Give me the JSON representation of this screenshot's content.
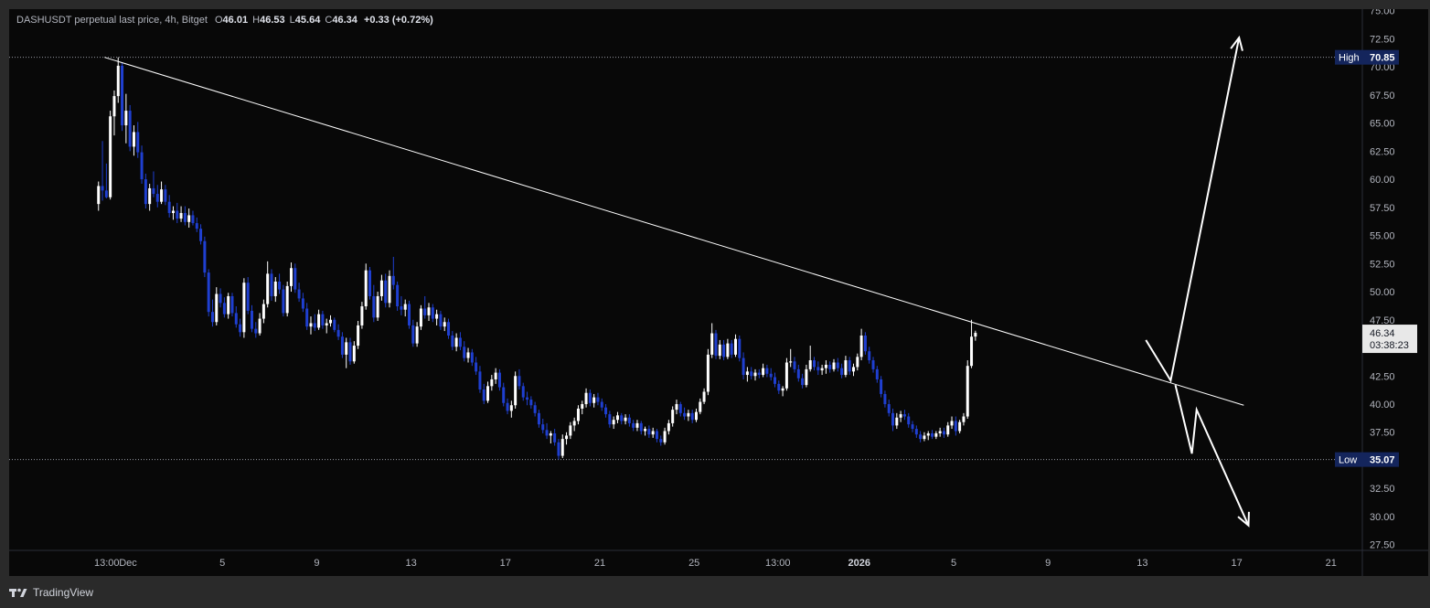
{
  "legend": {
    "symbol": "DASHUSDT perpetual last price, 4h, Bitget",
    "o_label": "O",
    "o_value": "46.01",
    "h_label": "H",
    "h_value": "46.53",
    "l_label": "L",
    "l_value": "45.64",
    "c_label": "C",
    "c_value": "46.34",
    "change": "+0.33 (+0.72%)"
  },
  "branding": {
    "name": "TradingView"
  },
  "colors": {
    "background": "#080808",
    "up_candle": "#ffffff",
    "down_candle": "#1f3fd0",
    "badge": "#14255c",
    "trendline": "#ffffff"
  },
  "chart_data": {
    "type": "candlestick",
    "symbol": "DASHUSDT",
    "interval": "4h",
    "ylim": [
      26.5,
      75.5
    ],
    "y_ticks": [
      "75.00",
      "72.50",
      "70.00",
      "67.50",
      "65.00",
      "62.50",
      "60.00",
      "57.50",
      "55.00",
      "52.50",
      "50.00",
      "47.50",
      "45.00",
      "42.50",
      "40.00",
      "37.50",
      "35.00",
      "32.50",
      "30.00",
      "27.50"
    ],
    "x_ticks": [
      {
        "label": "13:00",
        "day": -0.9,
        "bold": false
      },
      {
        "label": "Dec",
        "day": 0,
        "bold": false
      },
      {
        "label": "5",
        "day": 4,
        "bold": false
      },
      {
        "label": "9",
        "day": 8,
        "bold": false
      },
      {
        "label": "13",
        "day": 12,
        "bold": false
      },
      {
        "label": "17",
        "day": 16,
        "bold": false
      },
      {
        "label": "21",
        "day": 20,
        "bold": false
      },
      {
        "label": "25",
        "day": 24,
        "bold": false
      },
      {
        "label": "13:00",
        "day": 27.55,
        "bold": false
      },
      {
        "label": "2026",
        "day": 31,
        "bold": true
      },
      {
        "label": "5",
        "day": 35,
        "bold": false
      },
      {
        "label": "9",
        "day": 39,
        "bold": false
      },
      {
        "label": "13",
        "day": 43,
        "bold": false
      },
      {
        "label": "17",
        "day": 47,
        "bold": false
      },
      {
        "label": "21",
        "day": 51,
        "bold": false
      }
    ],
    "candles_4h": [
      [
        57.8,
        59.8,
        57.2,
        59.4
      ],
      [
        59.4,
        63.4,
        58.1,
        59.0
      ],
      [
        59.0,
        61.4,
        58.3,
        58.4
      ],
      [
        58.4,
        66.1,
        58.2,
        65.6
      ],
      [
        65.6,
        67.9,
        63.9,
        67.4
      ],
      [
        67.4,
        70.85,
        66.8,
        70.1
      ],
      [
        70.1,
        70.4,
        64.3,
        64.8
      ],
      [
        64.8,
        67.6,
        63.2,
        66.1
      ],
      [
        66.1,
        66.6,
        62.5,
        62.9
      ],
      [
        62.9,
        64.8,
        62.1,
        64.2
      ],
      [
        64.2,
        65.1,
        61.9,
        62.4
      ],
      [
        62.4,
        63.0,
        59.6,
        60.0
      ],
      [
        60.0,
        60.5,
        57.4,
        57.8
      ],
      [
        57.8,
        59.6,
        57.2,
        59.2
      ],
      [
        59.2,
        60.7,
        58.4,
        58.7
      ],
      [
        58.7,
        59.5,
        57.5,
        58.0
      ],
      [
        58.0,
        59.8,
        57.8,
        59.1
      ],
      [
        59.1,
        59.5,
        57.7,
        58.0
      ],
      [
        58.0,
        58.6,
        56.6,
        57.0
      ],
      [
        57.0,
        57.6,
        56.4,
        57.2
      ],
      [
        57.2,
        57.9,
        56.1,
        56.5
      ],
      [
        56.5,
        57.6,
        56.2,
        57.0
      ],
      [
        57.0,
        57.6,
        55.9,
        56.2
      ],
      [
        56.2,
        57.4,
        55.7,
        56.8
      ],
      [
        56.8,
        57.2,
        55.9,
        56.1
      ],
      [
        56.1,
        56.6,
        55.3,
        55.6
      ],
      [
        55.6,
        56.0,
        54.2,
        54.5
      ],
      [
        54.5,
        54.9,
        51.3,
        51.7
      ],
      [
        51.7,
        52.0,
        47.8,
        48.2
      ],
      [
        48.2,
        49.3,
        46.9,
        47.3
      ],
      [
        47.3,
        50.4,
        47.0,
        49.8
      ],
      [
        49.8,
        50.3,
        48.6,
        49.0
      ],
      [
        49.0,
        49.5,
        47.7,
        48.0
      ],
      [
        48.0,
        49.9,
        47.6,
        49.6
      ],
      [
        49.6,
        49.9,
        47.8,
        48.1
      ],
      [
        48.1,
        48.7,
        46.8,
        47.1
      ],
      [
        47.1,
        47.6,
        46.0,
        46.4
      ],
      [
        46.4,
        51.2,
        45.9,
        50.8
      ],
      [
        50.8,
        51.3,
        48.0,
        48.3
      ],
      [
        48.3,
        48.8,
        46.4,
        46.7
      ],
      [
        46.7,
        47.3,
        45.9,
        46.3
      ],
      [
        46.3,
        48.1,
        46.1,
        47.6
      ],
      [
        47.6,
        49.3,
        47.2,
        48.9
      ],
      [
        48.9,
        52.7,
        48.6,
        51.6
      ],
      [
        51.6,
        52.0,
        49.2,
        49.6
      ],
      [
        49.6,
        51.3,
        49.1,
        50.9
      ],
      [
        50.9,
        51.6,
        49.8,
        50.2
      ],
      [
        50.2,
        50.6,
        47.8,
        48.1
      ],
      [
        48.1,
        50.9,
        47.8,
        50.5
      ],
      [
        50.5,
        52.6,
        50.0,
        52.1
      ],
      [
        52.1,
        52.5,
        49.9,
        50.2
      ],
      [
        50.2,
        50.8,
        49.1,
        49.4
      ],
      [
        49.4,
        49.9,
        48.2,
        48.5
      ],
      [
        48.5,
        49.0,
        46.6,
        46.9
      ],
      [
        46.9,
        47.8,
        46.2,
        47.2
      ],
      [
        47.2,
        48.0,
        46.5,
        46.8
      ],
      [
        46.8,
        48.4,
        46.6,
        48.0
      ],
      [
        48.0,
        48.3,
        46.7,
        47.0
      ],
      [
        47.0,
        47.6,
        46.3,
        47.2
      ],
      [
        47.2,
        47.9,
        46.9,
        47.5
      ],
      [
        47.5,
        47.7,
        46.4,
        46.6
      ],
      [
        46.6,
        47.1,
        45.7,
        46.0
      ],
      [
        46.0,
        46.4,
        44.1,
        44.4
      ],
      [
        44.4,
        45.9,
        43.2,
        45.5
      ],
      [
        45.5,
        45.9,
        43.5,
        43.8
      ],
      [
        43.8,
        45.6,
        43.6,
        45.2
      ],
      [
        45.2,
        47.4,
        44.9,
        47.0
      ],
      [
        47.0,
        49.1,
        46.7,
        48.7
      ],
      [
        48.7,
        52.5,
        48.4,
        51.9
      ],
      [
        51.9,
        52.2,
        49.3,
        49.6
      ],
      [
        49.6,
        50.6,
        47.3,
        47.7
      ],
      [
        47.7,
        50.0,
        47.4,
        49.6
      ],
      [
        49.6,
        51.5,
        49.2,
        51.0
      ],
      [
        51.0,
        51.6,
        48.6,
        49.0
      ],
      [
        49.0,
        51.9,
        48.6,
        51.4
      ],
      [
        51.4,
        53.1,
        50.2,
        50.6
      ],
      [
        50.6,
        50.9,
        48.3,
        48.7
      ],
      [
        48.7,
        49.6,
        47.9,
        48.4
      ],
      [
        48.4,
        49.3,
        47.8,
        48.9
      ],
      [
        48.9,
        49.2,
        46.7,
        47.0
      ],
      [
        47.0,
        47.5,
        45.1,
        45.4
      ],
      [
        45.4,
        47.3,
        45.1,
        46.9
      ],
      [
        46.9,
        48.8,
        46.6,
        48.5
      ],
      [
        48.5,
        49.6,
        47.6,
        47.9
      ],
      [
        47.9,
        49.0,
        47.4,
        48.6
      ],
      [
        48.6,
        48.9,
        47.3,
        47.6
      ],
      [
        47.6,
        48.4,
        47.0,
        48.0
      ],
      [
        48.0,
        48.3,
        46.6,
        46.9
      ],
      [
        46.9,
        47.7,
        46.5,
        47.3
      ],
      [
        47.3,
        47.6,
        45.8,
        46.1
      ],
      [
        46.1,
        46.5,
        44.8,
        45.1
      ],
      [
        45.1,
        46.3,
        44.7,
        45.9
      ],
      [
        45.9,
        46.4,
        44.8,
        45.1
      ],
      [
        45.1,
        45.6,
        43.8,
        44.1
      ],
      [
        44.1,
        45.0,
        43.7,
        44.6
      ],
      [
        44.6,
        44.9,
        43.4,
        43.7
      ],
      [
        43.7,
        44.2,
        42.6,
        42.9
      ],
      [
        42.9,
        43.4,
        41.0,
        41.3
      ],
      [
        41.3,
        41.8,
        40.0,
        40.3
      ],
      [
        40.3,
        42.0,
        40.1,
        41.6
      ],
      [
        41.6,
        42.6,
        41.2,
        42.2
      ],
      [
        42.2,
        43.2,
        41.8,
        42.8
      ],
      [
        42.8,
        43.1,
        41.2,
        41.5
      ],
      [
        41.5,
        41.9,
        39.8,
        40.1
      ],
      [
        40.1,
        40.5,
        39.1,
        39.4
      ],
      [
        39.4,
        40.3,
        38.8,
        39.9
      ],
      [
        39.9,
        42.9,
        39.6,
        42.5
      ],
      [
        42.5,
        43.1,
        41.3,
        41.6
      ],
      [
        41.6,
        41.9,
        40.3,
        40.6
      ],
      [
        40.6,
        41.1,
        39.9,
        40.4
      ],
      [
        40.4,
        40.7,
        39.6,
        39.9
      ],
      [
        39.9,
        40.2,
        38.9,
        39.2
      ],
      [
        39.2,
        39.5,
        37.9,
        38.2
      ],
      [
        38.2,
        38.7,
        37.4,
        37.7
      ],
      [
        37.7,
        38.3,
        36.9,
        37.2
      ],
      [
        37.2,
        37.6,
        36.5,
        37.4
      ],
      [
        37.4,
        37.8,
        36.3,
        36.6
      ],
      [
        36.6,
        36.9,
        35.07,
        35.4
      ],
      [
        35.4,
        37.3,
        35.2,
        36.9
      ],
      [
        36.9,
        37.5,
        36.4,
        37.2
      ],
      [
        37.2,
        38.4,
        36.9,
        38.1
      ],
      [
        38.1,
        38.8,
        37.6,
        38.5
      ],
      [
        38.5,
        39.9,
        38.2,
        39.6
      ],
      [
        39.6,
        40.3,
        39.1,
        40.0
      ],
      [
        40.0,
        41.4,
        39.7,
        41.0
      ],
      [
        41.0,
        41.3,
        39.8,
        40.1
      ],
      [
        40.1,
        40.9,
        39.7,
        40.6
      ],
      [
        40.6,
        41.0,
        39.9,
        40.2
      ],
      [
        40.2,
        40.5,
        39.4,
        39.7
      ],
      [
        39.7,
        40.0,
        38.8,
        39.1
      ],
      [
        39.1,
        39.4,
        37.9,
        38.2
      ],
      [
        38.2,
        38.9,
        37.8,
        38.6
      ],
      [
        38.6,
        39.3,
        38.3,
        39.0
      ],
      [
        39.0,
        39.2,
        38.2,
        38.5
      ],
      [
        38.5,
        39.1,
        38.2,
        38.8
      ],
      [
        38.8,
        39.1,
        38.0,
        38.3
      ],
      [
        38.3,
        38.6,
        37.6,
        37.9
      ],
      [
        37.9,
        38.6,
        37.6,
        38.3
      ],
      [
        38.3,
        38.5,
        37.3,
        37.6
      ],
      [
        37.6,
        38.0,
        37.2,
        37.8
      ],
      [
        37.8,
        38.1,
        37.0,
        37.3
      ],
      [
        37.3,
        37.9,
        37.0,
        37.6
      ],
      [
        37.6,
        37.8,
        36.6,
        36.9
      ],
      [
        36.9,
        37.2,
        36.3,
        36.6
      ],
      [
        36.6,
        37.9,
        36.4,
        37.6
      ],
      [
        37.6,
        38.6,
        37.3,
        38.3
      ],
      [
        38.3,
        39.8,
        38.0,
        39.5
      ],
      [
        39.5,
        40.4,
        39.1,
        40.0
      ],
      [
        40.0,
        40.2,
        38.9,
        39.2
      ],
      [
        39.2,
        39.7,
        38.6,
        38.9
      ],
      [
        38.9,
        39.5,
        38.5,
        39.2
      ],
      [
        39.2,
        39.5,
        38.3,
        38.6
      ],
      [
        38.6,
        39.6,
        38.4,
        39.3
      ],
      [
        39.3,
        40.5,
        39.1,
        40.2
      ],
      [
        40.2,
        41.4,
        40.0,
        41.1
      ],
      [
        41.1,
        44.9,
        40.8,
        44.4
      ],
      [
        44.4,
        47.2,
        44.1,
        46.3
      ],
      [
        46.3,
        46.6,
        44.0,
        44.3
      ],
      [
        44.3,
        45.7,
        44.0,
        45.3
      ],
      [
        45.3,
        45.7,
        43.9,
        44.2
      ],
      [
        44.2,
        45.8,
        44.0,
        45.4
      ],
      [
        45.4,
        45.7,
        44.1,
        44.4
      ],
      [
        44.4,
        46.2,
        44.2,
        45.8
      ],
      [
        45.8,
        46.1,
        43.8,
        44.1
      ],
      [
        44.1,
        44.6,
        42.2,
        42.6
      ],
      [
        42.6,
        43.3,
        42.0,
        42.9
      ],
      [
        42.9,
        43.3,
        42.2,
        42.5
      ],
      [
        42.5,
        43.1,
        42.1,
        42.8
      ],
      [
        42.8,
        43.1,
        42.3,
        42.6
      ],
      [
        42.6,
        43.6,
        42.4,
        43.2
      ],
      [
        43.2,
        43.5,
        42.4,
        42.7
      ],
      [
        42.7,
        43.2,
        42.1,
        42.4
      ],
      [
        42.4,
        42.8,
        41.5,
        41.8
      ],
      [
        41.8,
        42.1,
        40.9,
        41.2
      ],
      [
        41.2,
        41.6,
        40.7,
        41.4
      ],
      [
        41.4,
        44.1,
        41.2,
        43.7
      ],
      [
        43.7,
        44.9,
        43.3,
        43.8
      ],
      [
        43.8,
        44.2,
        42.8,
        43.1
      ],
      [
        43.1,
        43.5,
        42.0,
        42.3
      ],
      [
        42.3,
        42.7,
        41.4,
        41.7
      ],
      [
        41.7,
        43.5,
        41.5,
        43.1
      ],
      [
        43.1,
        45.2,
        42.9,
        43.9
      ],
      [
        43.9,
        44.2,
        43.0,
        43.3
      ],
      [
        43.3,
        43.8,
        42.6,
        43.0
      ],
      [
        43.0,
        43.5,
        42.6,
        43.2
      ],
      [
        43.2,
        43.9,
        42.7,
        43.5
      ],
      [
        43.5,
        43.8,
        42.8,
        43.1
      ],
      [
        43.1,
        44.0,
        42.9,
        43.7
      ],
      [
        43.7,
        44.1,
        42.9,
        43.2
      ],
      [
        43.2,
        43.6,
        42.3,
        42.6
      ],
      [
        42.6,
        44.3,
        42.4,
        43.9
      ],
      [
        43.9,
        44.2,
        42.6,
        42.9
      ],
      [
        42.9,
        43.6,
        42.5,
        43.3
      ],
      [
        43.3,
        44.5,
        43.0,
        44.2
      ],
      [
        44.2,
        46.7,
        43.9,
        46.1
      ],
      [
        46.1,
        46.4,
        44.4,
        44.7
      ],
      [
        44.7,
        45.1,
        43.6,
        43.9
      ],
      [
        43.9,
        44.2,
        42.8,
        43.1
      ],
      [
        43.1,
        43.4,
        41.9,
        42.2
      ],
      [
        42.2,
        42.5,
        40.6,
        40.9
      ],
      [
        40.9,
        41.2,
        39.7,
        40.0
      ],
      [
        40.0,
        40.4,
        38.9,
        39.2
      ],
      [
        39.2,
        39.6,
        37.6,
        38.1
      ],
      [
        38.1,
        39.2,
        37.8,
        38.8
      ],
      [
        38.8,
        39.4,
        38.4,
        39.1
      ],
      [
        39.1,
        39.5,
        38.6,
        38.9
      ],
      [
        38.9,
        39.2,
        37.9,
        38.2
      ],
      [
        38.2,
        38.5,
        37.5,
        37.8
      ],
      [
        37.8,
        38.1,
        37.0,
        37.3
      ],
      [
        37.3,
        37.6,
        36.6,
        36.9
      ],
      [
        36.9,
        37.5,
        36.7,
        37.2
      ],
      [
        37.2,
        37.6,
        36.8,
        37.4
      ],
      [
        37.4,
        37.7,
        36.9,
        37.1
      ],
      [
        37.1,
        37.6,
        36.9,
        37.4
      ],
      [
        37.4,
        37.9,
        37.1,
        37.6
      ],
      [
        37.6,
        37.9,
        37.0,
        37.3
      ],
      [
        37.3,
        38.4,
        37.1,
        38.1
      ],
      [
        38.1,
        38.9,
        37.8,
        38.5
      ],
      [
        38.5,
        38.9,
        37.2,
        37.6
      ],
      [
        37.6,
        38.6,
        37.4,
        38.4
      ],
      [
        38.4,
        39.2,
        38.1,
        38.9
      ],
      [
        38.9,
        43.9,
        38.7,
        43.4
      ],
      [
        43.4,
        47.5,
        43.2,
        46.0
      ],
      [
        46.01,
        46.53,
        45.64,
        46.34
      ]
    ],
    "day_per_candle": 0.1667,
    "first_candle_day": -1.25,
    "annotations": {
      "high": {
        "label": "High",
        "value": "70.85",
        "price": 70.85
      },
      "low": {
        "label": "Low",
        "value": "35.07",
        "price": 35.07
      },
      "last_price": {
        "value": "46.34",
        "countdown": "03:38:23"
      },
      "trendline": {
        "from": {
          "day": -1.0,
          "price": 70.85
        },
        "to": {
          "day": 47.3,
          "price": 39.9
        }
      },
      "arrows": [
        {
          "name": "bullish-projection",
          "points": [
            [
              43.15,
              45.7
            ],
            [
              44.2,
              42.1
            ],
            [
              47.1,
              72.6
            ]
          ]
        },
        {
          "name": "bearish-projection",
          "points": [
            [
              44.4,
              41.7
            ],
            [
              45.1,
              35.6
            ],
            [
              45.3,
              39.5
            ],
            [
              47.5,
              29.2
            ]
          ]
        }
      ]
    }
  }
}
